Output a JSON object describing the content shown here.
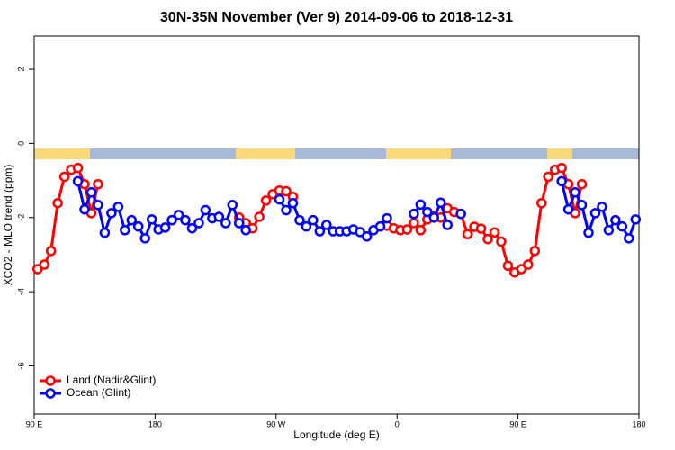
{
  "chart_data": {
    "type": "line",
    "title": "30N-35N November (Ver 9)   2014-09-06 to 2018-12-31",
    "x_label": "Longitude (deg E)",
    "y_label": "XCO2 - MLO trend (ppm)",
    "x": [
      92.5,
      97.5,
      102.5,
      107.5,
      112.5,
      117.5,
      122.5,
      127.5,
      132.5,
      137.5,
      142.5,
      147.5,
      152.5,
      157.5,
      162.5,
      167.5,
      172.5,
      177.5,
      182.5,
      187.5,
      192.5,
      197.5,
      202.5,
      207.5,
      212.5,
      217.5,
      222.5,
      227.5,
      232.5,
      237.5,
      242.5,
      247.5,
      252.5,
      257.5,
      262.5,
      267.5,
      272.5,
      277.5,
      282.5,
      287.5,
      292.5,
      297.5,
      302.5,
      307.5,
      312.5,
      317.5,
      322.5,
      327.5,
      332.5,
      337.5,
      342.5,
      347.5,
      352.5,
      357.5,
      362.5,
      367.5,
      372.5,
      377.5,
      382.5,
      387.5,
      392.5,
      397.5,
      402.5,
      407.5,
      412.5,
      417.5,
      422.5,
      427.5,
      432.5,
      437.5,
      442.5,
      447.5,
      452.5,
      457.5,
      462.5,
      467.5,
      472.5,
      477.5,
      482.5,
      487.5,
      492.5,
      497.5,
      502.5,
      507.5,
      512.5,
      517.5,
      522.5,
      527.5,
      532.5,
      537.5
    ],
    "series": [
      {
        "name": "Land (Nadir&Glint)",
        "color": "#ff0000",
        "values": [
          -3.39,
          -3.27,
          -2.9,
          -1.61,
          -0.9,
          -0.71,
          -0.66,
          -1.1,
          -1.88,
          -1.1,
          null,
          null,
          null,
          null,
          null,
          null,
          null,
          null,
          null,
          null,
          null,
          null,
          null,
          null,
          null,
          null,
          null,
          null,
          null,
          null,
          -2.0,
          -2.15,
          -2.29,
          -1.98,
          -1.54,
          -1.37,
          -1.27,
          -1.29,
          -1.44,
          null,
          null,
          null,
          null,
          null,
          null,
          null,
          null,
          null,
          null,
          null,
          null,
          null,
          -2.22,
          -2.29,
          -2.34,
          -2.32,
          -2.15,
          -2.34,
          -2.05,
          -1.95,
          -2.0,
          -1.75,
          -1.85,
          -1.9,
          -2.45,
          -2.25,
          -2.3,
          -2.58,
          -2.4,
          -2.65,
          -3.3,
          -3.48,
          -3.39,
          -3.27,
          -2.9,
          -1.61,
          -0.9,
          -0.71,
          -0.66,
          -1.1,
          -1.88,
          -1.1,
          null,
          null,
          null,
          null,
          null,
          null,
          null,
          null
        ]
      },
      {
        "name": "Ocean (Glint)",
        "color": "#0000ff",
        "values": [
          null,
          null,
          null,
          null,
          null,
          null,
          -1.02,
          -1.78,
          -1.32,
          -1.66,
          -2.41,
          -1.88,
          -1.71,
          -2.34,
          -2.07,
          -2.24,
          -2.56,
          -2.05,
          -2.32,
          -2.27,
          -2.07,
          -1.93,
          -2.07,
          -2.29,
          -2.15,
          -1.8,
          -2.02,
          -1.98,
          -2.15,
          -1.66,
          -2.15,
          -2.34,
          null,
          null,
          null,
          null,
          -1.51,
          -1.8,
          -1.61,
          -2.07,
          -2.24,
          -2.07,
          -2.37,
          -2.2,
          -2.37,
          -2.37,
          -2.37,
          -2.32,
          -2.39,
          -2.51,
          -2.34,
          -2.24,
          -2.02,
          null,
          null,
          null,
          -1.9,
          -1.65,
          -1.85,
          -2.0,
          -1.6,
          -2.2,
          null,
          -1.9,
          null,
          null,
          null,
          null,
          null,
          null,
          null,
          null,
          null,
          null,
          null,
          null,
          null,
          null,
          -1.02,
          -1.78,
          -1.32,
          -1.66,
          -2.41,
          -1.88,
          -1.71,
          -2.34,
          -2.07,
          -2.24,
          -2.56,
          -2.05
        ]
      }
    ],
    "xlim": [
      90,
      540
    ],
    "xticks": [
      {
        "value": 90,
        "label": "90 E"
      },
      180,
      {
        "value": 270,
        "label": "90 W"
      },
      {
        "value": 360,
        "label": "0"
      },
      {
        "value": 450,
        "label": "90 E"
      },
      {
        "value": 540,
        "label": "180"
      }
    ],
    "ylim": [
      -7.3,
      2.9
    ],
    "yticks": [
      -6,
      -4,
      -2,
      0,
      2
    ],
    "legend": "bottom-left"
  }
}
